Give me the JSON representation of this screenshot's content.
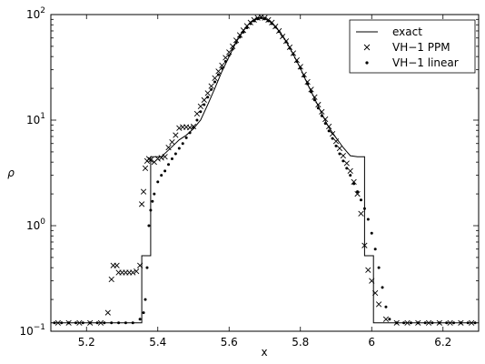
{
  "chart_data": {
    "type": "line",
    "title": "",
    "xlabel": "x",
    "ylabel": "ρ",
    "xlim": [
      5.1,
      6.3
    ],
    "ylim": [
      0.1,
      100
    ],
    "yscale": "log",
    "grid": false,
    "legend_position": "top-right",
    "x_ticks": [
      5.2,
      5.4,
      5.6,
      5.8,
      6.0,
      6.2
    ],
    "x_tick_labels": [
      "5.2",
      "5.4",
      "5.6",
      "5.8",
      "6",
      "6.2"
    ],
    "y_ticks": [
      0.1,
      1,
      10,
      100
    ],
    "y_tick_labels": [
      {
        "base": "10",
        "exp": "−1"
      },
      {
        "base": "10",
        "exp": "0"
      },
      {
        "base": "10",
        "exp": "1"
      },
      {
        "base": "10",
        "exp": "2"
      }
    ],
    "series": [
      {
        "name": "exact",
        "style": "line",
        "color": "#000000",
        "points": [
          [
            5.1,
            0.12
          ],
          [
            5.355,
            0.12
          ],
          [
            5.355,
            0.52
          ],
          [
            5.38,
            0.52
          ],
          [
            5.38,
            4.5
          ],
          [
            5.41,
            4.5
          ],
          [
            5.43,
            5.2
          ],
          [
            5.46,
            6.5
          ],
          [
            5.48,
            7.2
          ],
          [
            5.5,
            8.3
          ],
          [
            5.52,
            10
          ],
          [
            5.54,
            14
          ],
          [
            5.56,
            20
          ],
          [
            5.58,
            29
          ],
          [
            5.6,
            40
          ],
          [
            5.62,
            55
          ],
          [
            5.64,
            70
          ],
          [
            5.66,
            85
          ],
          [
            5.68,
            93
          ],
          [
            5.69,
            94
          ],
          [
            5.7,
            92
          ],
          [
            5.72,
            83
          ],
          [
            5.74,
            70
          ],
          [
            5.76,
            56
          ],
          [
            5.78,
            42
          ],
          [
            5.8,
            31
          ],
          [
            5.82,
            22
          ],
          [
            5.84,
            16
          ],
          [
            5.86,
            11.5
          ],
          [
            5.88,
            8.5
          ],
          [
            5.9,
            6.8
          ],
          [
            5.92,
            5.5
          ],
          [
            5.94,
            4.6
          ],
          [
            5.96,
            4.5
          ],
          [
            5.98,
            4.5
          ],
          [
            5.98,
            0.52
          ],
          [
            6.005,
            0.52
          ],
          [
            6.005,
            0.12
          ],
          [
            6.3,
            0.12
          ]
        ]
      },
      {
        "name": "VH−1 PPM",
        "style": "cross",
        "color": "#000000",
        "points": [
          [
            5.12,
            0.12
          ],
          [
            5.15,
            0.12
          ],
          [
            5.18,
            0.12
          ],
          [
            5.21,
            0.12
          ],
          [
            5.24,
            0.12
          ],
          [
            5.26,
            0.15
          ],
          [
            5.27,
            0.31
          ],
          [
            5.275,
            0.42
          ],
          [
            5.285,
            0.42
          ],
          [
            5.29,
            0.36
          ],
          [
            5.3,
            0.36
          ],
          [
            5.31,
            0.36
          ],
          [
            5.32,
            0.36
          ],
          [
            5.33,
            0.36
          ],
          [
            5.34,
            0.37
          ],
          [
            5.35,
            0.42
          ],
          [
            5.355,
            1.6
          ],
          [
            5.36,
            2.1
          ],
          [
            5.365,
            3.5
          ],
          [
            5.37,
            4.1
          ],
          [
            5.375,
            4.3
          ],
          [
            5.38,
            4.2
          ],
          [
            5.39,
            4.0
          ],
          [
            5.4,
            4.3
          ],
          [
            5.41,
            4.4
          ],
          [
            5.42,
            4.5
          ],
          [
            5.43,
            5.5
          ],
          [
            5.44,
            6.2
          ],
          [
            5.45,
            7.2
          ],
          [
            5.46,
            8.4
          ],
          [
            5.47,
            8.6
          ],
          [
            5.48,
            8.6
          ],
          [
            5.49,
            8.5
          ],
          [
            5.5,
            8.7
          ],
          [
            5.51,
            11.5
          ],
          [
            5.52,
            13.5
          ],
          [
            5.53,
            15.5
          ],
          [
            5.54,
            18
          ],
          [
            5.55,
            21
          ],
          [
            5.56,
            25
          ],
          [
            5.57,
            29
          ],
          [
            5.58,
            33
          ],
          [
            5.59,
            39
          ],
          [
            5.6,
            44
          ],
          [
            5.61,
            50
          ],
          [
            5.62,
            57
          ],
          [
            5.63,
            64
          ],
          [
            5.64,
            71
          ],
          [
            5.65,
            78
          ],
          [
            5.66,
            84
          ],
          [
            5.67,
            89
          ],
          [
            5.68,
            93
          ],
          [
            5.69,
            95
          ],
          [
            5.7,
            93
          ],
          [
            5.71,
            89
          ],
          [
            5.72,
            84
          ],
          [
            5.73,
            77
          ],
          [
            5.74,
            70
          ],
          [
            5.75,
            62
          ],
          [
            5.76,
            56
          ],
          [
            5.77,
            49
          ],
          [
            5.78,
            43
          ],
          [
            5.79,
            37
          ],
          [
            5.8,
            32
          ],
          [
            5.81,
            27
          ],
          [
            5.82,
            23
          ],
          [
            5.83,
            19.5
          ],
          [
            5.84,
            16.5
          ],
          [
            5.85,
            14
          ],
          [
            5.86,
            12
          ],
          [
            5.87,
            10.2
          ],
          [
            5.88,
            8.7
          ],
          [
            5.89,
            7.4
          ],
          [
            5.9,
            6.3
          ],
          [
            5.91,
            5.4
          ],
          [
            5.92,
            4.6
          ],
          [
            5.93,
            3.9
          ],
          [
            5.94,
            3.3
          ],
          [
            5.95,
            2.6
          ],
          [
            5.96,
            2.0
          ],
          [
            5.97,
            1.3
          ],
          [
            5.98,
            0.65
          ],
          [
            5.99,
            0.38
          ],
          [
            6.0,
            0.3
          ],
          [
            6.01,
            0.23
          ],
          [
            6.02,
            0.18
          ],
          [
            6.04,
            0.13
          ],
          [
            6.07,
            0.12
          ],
          [
            6.1,
            0.12
          ],
          [
            6.13,
            0.12
          ],
          [
            6.16,
            0.12
          ],
          [
            6.19,
            0.12
          ],
          [
            6.22,
            0.12
          ],
          [
            6.25,
            0.12
          ],
          [
            6.28,
            0.12
          ]
        ]
      },
      {
        "name": "VH−1 linear",
        "style": "dot",
        "color": "#000000",
        "points": [
          [
            5.11,
            0.12
          ],
          [
            5.13,
            0.12
          ],
          [
            5.15,
            0.12
          ],
          [
            5.17,
            0.12
          ],
          [
            5.19,
            0.12
          ],
          [
            5.21,
            0.12
          ],
          [
            5.23,
            0.12
          ],
          [
            5.25,
            0.12
          ],
          [
            5.27,
            0.12
          ],
          [
            5.29,
            0.12
          ],
          [
            5.31,
            0.12
          ],
          [
            5.33,
            0.12
          ],
          [
            5.35,
            0.13
          ],
          [
            5.36,
            0.15
          ],
          [
            5.365,
            0.2
          ],
          [
            5.37,
            0.4
          ],
          [
            5.375,
            1.0
          ],
          [
            5.38,
            1.4
          ],
          [
            5.385,
            1.7
          ],
          [
            5.39,
            2.0
          ],
          [
            5.4,
            2.6
          ],
          [
            5.41,
            3.0
          ],
          [
            5.42,
            3.3
          ],
          [
            5.43,
            3.8
          ],
          [
            5.44,
            4.3
          ],
          [
            5.45,
            4.8
          ],
          [
            5.46,
            5.4
          ],
          [
            5.47,
            6.0
          ],
          [
            5.48,
            6.8
          ],
          [
            5.49,
            7.6
          ],
          [
            5.5,
            8.5
          ],
          [
            5.51,
            10
          ],
          [
            5.52,
            12
          ],
          [
            5.53,
            14
          ],
          [
            5.54,
            16.5
          ],
          [
            5.55,
            19.5
          ],
          [
            5.56,
            23
          ],
          [
            5.57,
            27
          ],
          [
            5.58,
            31
          ],
          [
            5.59,
            36
          ],
          [
            5.6,
            41
          ],
          [
            5.61,
            47
          ],
          [
            5.62,
            54
          ],
          [
            5.63,
            61
          ],
          [
            5.64,
            68
          ],
          [
            5.65,
            75
          ],
          [
            5.66,
            82
          ],
          [
            5.67,
            87
          ],
          [
            5.68,
            91
          ],
          [
            5.69,
            93
          ],
          [
            5.7,
            91
          ],
          [
            5.71,
            87
          ],
          [
            5.72,
            82
          ],
          [
            5.73,
            76
          ],
          [
            5.74,
            69
          ],
          [
            5.75,
            62
          ],
          [
            5.76,
            55
          ],
          [
            5.77,
            48
          ],
          [
            5.78,
            42
          ],
          [
            5.79,
            36
          ],
          [
            5.8,
            31
          ],
          [
            5.81,
            26
          ],
          [
            5.82,
            22
          ],
          [
            5.83,
            18.5
          ],
          [
            5.84,
            15.5
          ],
          [
            5.85,
            13
          ],
          [
            5.86,
            11
          ],
          [
            5.87,
            9.3
          ],
          [
            5.88,
            7.9
          ],
          [
            5.89,
            6.7
          ],
          [
            5.9,
            5.7
          ],
          [
            5.91,
            4.8
          ],
          [
            5.92,
            4.1
          ],
          [
            5.93,
            3.5
          ],
          [
            5.94,
            3.0
          ],
          [
            5.95,
            2.5
          ],
          [
            5.96,
            2.1
          ],
          [
            5.97,
            1.75
          ],
          [
            5.98,
            1.45
          ],
          [
            5.99,
            1.15
          ],
          [
            6.0,
            0.85
          ],
          [
            6.01,
            0.6
          ],
          [
            6.02,
            0.4
          ],
          [
            6.03,
            0.26
          ],
          [
            6.04,
            0.17
          ],
          [
            6.05,
            0.13
          ],
          [
            6.07,
            0.12
          ],
          [
            6.09,
            0.12
          ],
          [
            6.11,
            0.12
          ],
          [
            6.13,
            0.12
          ],
          [
            6.15,
            0.12
          ],
          [
            6.17,
            0.12
          ],
          [
            6.19,
            0.12
          ],
          [
            6.21,
            0.12
          ],
          [
            6.23,
            0.12
          ],
          [
            6.25,
            0.12
          ],
          [
            6.27,
            0.12
          ],
          [
            6.29,
            0.12
          ]
        ]
      }
    ]
  }
}
